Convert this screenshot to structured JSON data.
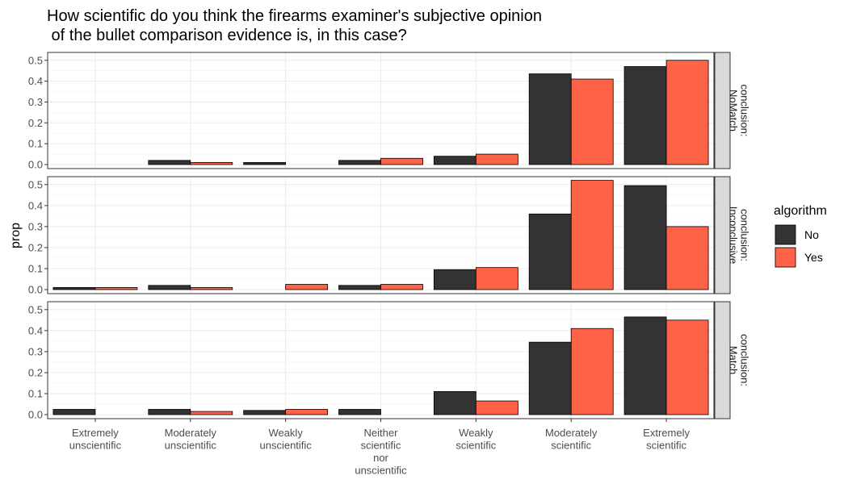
{
  "chart_data": {
    "type": "bar",
    "title": "How scientific do you think the firearms examiner's subjective opinion\n of the bullet comparison evidence is, in this case?",
    "xlabel": "",
    "ylabel": "prop",
    "ylim": [
      0,
      0.53
    ],
    "yticks": [
      0.0,
      0.1,
      0.2,
      0.3,
      0.4,
      0.5
    ],
    "grid": true,
    "categories": [
      "Extremely\nunscientific",
      "Moderately\nunscientific",
      "Weakly\nunscientific",
      "Neither\nscientific\nnor\nunscientific",
      "Weakly\nscientific",
      "Moderately\nscientific",
      "Extremely\nscientific"
    ],
    "legend": {
      "title": "algorithm",
      "position": "right",
      "entries": [
        {
          "name": "No",
          "color": "#333333"
        },
        {
          "name": "Yes",
          "color": "#ff6347"
        }
      ]
    },
    "facets": [
      {
        "label": "conclusion:\nNoMatch",
        "series": [
          {
            "name": "No",
            "values": [
              null,
              0.02,
              0.01,
              0.02,
              0.04,
              0.435,
              0.47
            ]
          },
          {
            "name": "Yes",
            "values": [
              null,
              0.01,
              null,
              0.03,
              0.05,
              0.41,
              0.5
            ]
          }
        ]
      },
      {
        "label": "conclusion:\nInconclusive",
        "series": [
          {
            "name": "No",
            "values": [
              0.01,
              0.02,
              null,
              0.02,
              0.095,
              0.36,
              0.495
            ]
          },
          {
            "name": "Yes",
            "values": [
              0.01,
              0.01,
              0.025,
              0.025,
              0.105,
              0.52,
              0.3
            ]
          }
        ]
      },
      {
        "label": "conclusion:\nMatch",
        "series": [
          {
            "name": "No",
            "values": [
              0.025,
              0.025,
              0.02,
              0.025,
              0.11,
              0.345,
              0.465
            ]
          },
          {
            "name": "Yes",
            "values": [
              null,
              0.015,
              0.025,
              null,
              0.065,
              0.41,
              0.45
            ]
          }
        ]
      }
    ]
  }
}
